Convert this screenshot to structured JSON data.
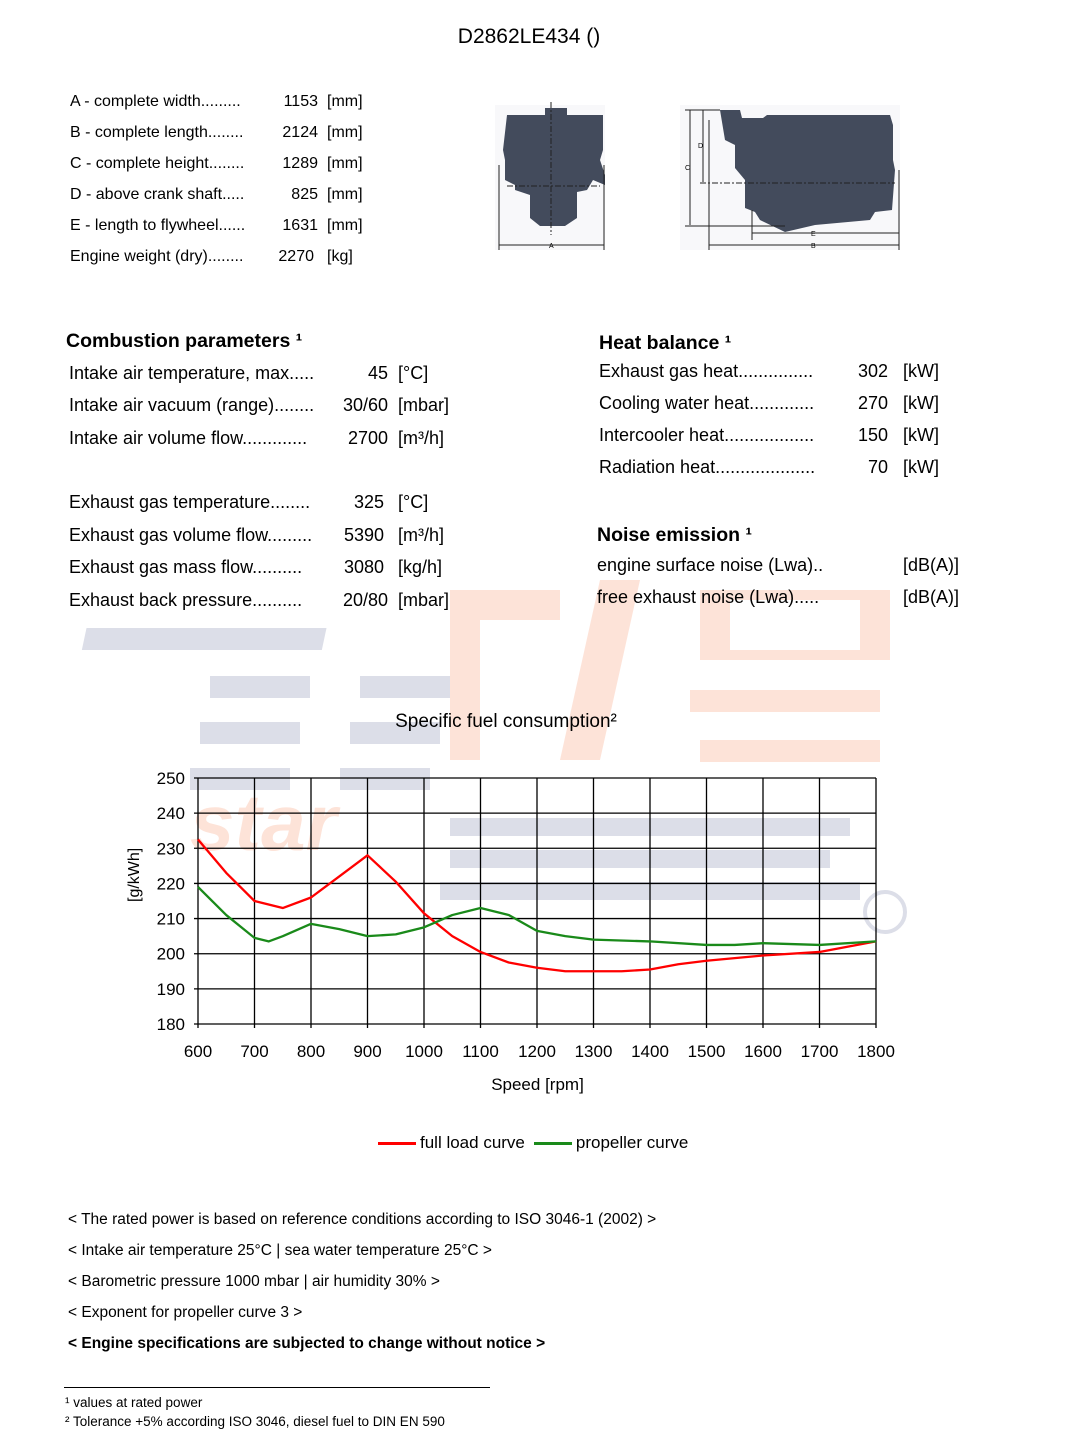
{
  "header": {
    "title": "D2862LE434 ()"
  },
  "dimensions": [
    {
      "label": "A - complete width.........",
      "value": "1153",
      "unit": "[mm]"
    },
    {
      "label": "B - complete length........",
      "value": "2124",
      "unit": "[mm]"
    },
    {
      "label": "C - complete height........",
      "value": "1289",
      "unit": "[mm]"
    },
    {
      "label": "D - above crank shaft.....",
      "value": "825",
      "unit": "[mm]"
    },
    {
      "label": "E - length to flywheel......",
      "value": "1631",
      "unit": "[mm]"
    },
    {
      "label": "Engine weight (dry)........",
      "value": "2270",
      "unit": "[kg]"
    }
  ],
  "drawing": {
    "labels": [
      "A",
      "B",
      "C",
      "D",
      "E"
    ],
    "color": "#434b5c"
  },
  "combustion": {
    "title": "Combustion parameters ¹",
    "rows": [
      {
        "label": "Intake air temperature, max.....",
        "value": "45",
        "unit": "[°C]"
      },
      {
        "label": "Intake air vacuum (range)........",
        "value": "30/60",
        "unit": "[mbar]"
      },
      {
        "label": "Intake air volume flow.............",
        "value": "2700",
        "unit": "[m³/h]"
      },
      {
        "label": "Exhaust gas temperature........",
        "value": "325",
        "unit": "[°C]"
      },
      {
        "label": "Exhaust gas volume flow.........",
        "value": "5390",
        "unit": "[m³/h]"
      },
      {
        "label": "Exhaust gas mass flow..........",
        "value": "3080",
        "unit": "[kg/h]"
      },
      {
        "label": "Exhaust back pressure..........",
        "value": "20/80",
        "unit": "[mbar]"
      }
    ]
  },
  "heat_balance": {
    "title": "Heat balance ¹",
    "rows": [
      {
        "label": "Exhaust gas heat...............",
        "value": "302",
        "unit": "[kW]"
      },
      {
        "label": "Cooling water heat.............",
        "value": "270",
        "unit": "[kW]"
      },
      {
        "label": "Intercooler heat..................",
        "value": "150",
        "unit": "[kW]"
      },
      {
        "label": "Radiation heat....................",
        "value": "70",
        "unit": "[kW]"
      }
    ]
  },
  "noise": {
    "title": "Noise emission ¹",
    "rows": [
      {
        "label": "engine surface noise (Lwa)..",
        "value": "",
        "unit": "[dB(A)]"
      },
      {
        "label": "free exhaust noise (Lwa).....",
        "value": "",
        "unit": "[dB(A)]"
      }
    ]
  },
  "chart_data": {
    "type": "line",
    "title": "Specific fuel consumption²",
    "xlabel": "Speed [rpm]",
    "ylabel": "[g/kWh]",
    "xlim": [
      600,
      1800
    ],
    "ylim": [
      180,
      250
    ],
    "xticks": [
      "600",
      "700",
      "800",
      "900",
      "1000",
      "1100",
      "1200",
      "1300",
      "1400",
      "1500",
      "1600",
      "1700",
      "1800"
    ],
    "yticks": [
      "250",
      "240",
      "230",
      "220",
      "210",
      "200",
      "190",
      "180"
    ],
    "grid": true,
    "legend_position": "bottom",
    "series": [
      {
        "name": "full load curve",
        "color": "#ff0000",
        "x": [
          600,
          650,
          700,
          750,
          800,
          850,
          900,
          950,
          1000,
          1050,
          1100,
          1150,
          1200,
          1250,
          1300,
          1350,
          1400,
          1450,
          1500,
          1600,
          1700,
          1800
        ],
        "y": [
          232.5,
          223,
          215,
          213,
          216,
          222,
          228,
          220.5,
          211.5,
          205,
          200.5,
          197.5,
          196,
          195,
          195,
          195,
          195.5,
          197,
          198,
          199.5,
          200.5,
          203.5
        ]
      },
      {
        "name": "propeller curve",
        "color": "#1a8a1a",
        "x": [
          600,
          650,
          700,
          725,
          750,
          800,
          850,
          900,
          950,
          1000,
          1050,
          1100,
          1150,
          1200,
          1250,
          1300,
          1400,
          1500,
          1550,
          1600,
          1700,
          1800
        ],
        "y": [
          219,
          211,
          204.5,
          203.5,
          205,
          208.5,
          207,
          205,
          205.5,
          207.5,
          211,
          213,
          211,
          206.5,
          205,
          204,
          203.5,
          202.5,
          202.5,
          203,
          202.5,
          203.5
        ]
      }
    ]
  },
  "notes": [
    "< The rated power is based on reference conditions according to ISO 3046-1 (2002) >",
    "< Intake air temperature 25°C | sea water temperature 25°C >",
    "< Barometric pressure 1000 mbar | air humidity 30% >",
    "< Exponent for propeller curve 3 >",
    "< Engine specifications are subjected to change without notice >"
  ],
  "footnotes": [
    "¹ values at rated power",
    "² Tolerance +5% according ISO 3046, diesel fuel to DIN EN 590"
  ],
  "watermark": {
    "text": "star",
    "colors": [
      "#d8dae6",
      "#fcd9cc"
    ]
  }
}
